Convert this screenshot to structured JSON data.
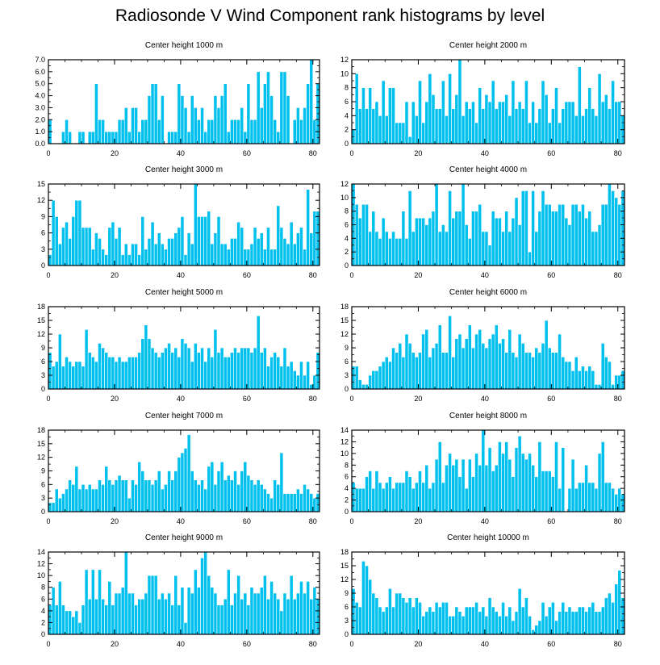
{
  "title": "Radiosonde V Wind Component rank histograms by level",
  "colors": {
    "bar": "#00c0ee",
    "bar_edge": "#ffffff",
    "axis": "#000000"
  },
  "chart_data": [
    {
      "type": "bar",
      "title": "Center height 1000 m",
      "xlabel": "",
      "ylabel": "",
      "xlim": [
        0,
        82
      ],
      "xticks": [
        0,
        20,
        40,
        60,
        80
      ],
      "ylim": [
        0,
        7
      ],
      "yticks": [
        "0.0",
        "1.0",
        "2.0",
        "3.0",
        "4.0",
        "5.0",
        "6.0",
        "7.0"
      ],
      "values": [
        2,
        0,
        0,
        0,
        1,
        2,
        1,
        0,
        0,
        1,
        1,
        0,
        1,
        1,
        5,
        2,
        2,
        1,
        1,
        1,
        1,
        2,
        2,
        3,
        1,
        3,
        3,
        1,
        2,
        2,
        4,
        5,
        5,
        2,
        4,
        0,
        1,
        1,
        1,
        5,
        4,
        3,
        1,
        4,
        3,
        2,
        3,
        1,
        2,
        2,
        4,
        3,
        4,
        5,
        1,
        2,
        2,
        2,
        3,
        1,
        5,
        2,
        2,
        6,
        3,
        5,
        6,
        4,
        2,
        1,
        6,
        6,
        4,
        0,
        2,
        3,
        2,
        3,
        5,
        7,
        2,
        5
      ]
    },
    {
      "type": "bar",
      "title": "Center height 2000 m",
      "xlabel": "",
      "ylabel": "",
      "xlim": [
        0,
        82
      ],
      "xticks": [
        0,
        20,
        40,
        60,
        80
      ],
      "ylim": [
        0,
        12
      ],
      "yticks": [
        "0",
        "2",
        "4",
        "6",
        "8",
        "10",
        "12"
      ],
      "values": [
        2,
        10,
        5,
        8,
        5,
        8,
        5,
        6,
        4,
        9,
        4,
        8,
        8,
        3,
        3,
        3,
        6,
        1,
        6,
        4,
        9,
        3,
        6,
        10,
        7,
        5,
        5,
        9,
        4,
        10,
        5,
        7,
        12,
        4,
        6,
        5,
        6,
        3,
        8,
        5,
        7,
        6,
        9,
        5,
        6,
        6,
        7,
        4,
        9,
        5,
        6,
        5,
        9,
        3,
        6,
        3,
        5,
        9,
        7,
        3,
        5,
        8,
        3,
        5,
        6,
        6,
        6,
        4,
        11,
        4,
        5,
        8,
        5,
        4,
        10,
        6,
        7,
        5,
        9,
        6,
        6,
        4
      ]
    },
    {
      "type": "bar",
      "title": "Center height 3000 m",
      "xlabel": "",
      "ylabel": "",
      "xlim": [
        0,
        82
      ],
      "xticks": [
        0,
        20,
        40,
        60,
        80
      ],
      "ylim": [
        0,
        15
      ],
      "yticks": [
        "0",
        "3",
        "6",
        "9",
        "12",
        "15"
      ],
      "values": [
        2,
        12,
        9,
        4,
        7,
        8,
        5,
        9,
        12,
        12,
        7,
        7,
        7,
        3,
        6,
        5,
        3,
        2,
        7,
        8,
        5,
        7,
        2,
        4,
        2,
        4,
        4,
        2,
        9,
        3,
        5,
        8,
        4,
        6,
        4,
        3,
        5,
        5,
        6,
        7,
        9,
        2,
        6,
        4,
        15,
        9,
        9,
        9,
        10,
        4,
        6,
        9,
        4,
        4,
        3,
        5,
        5,
        8,
        7,
        3,
        3,
        4,
        7,
        5,
        6,
        3,
        7,
        3,
        3,
        11,
        7,
        5,
        4,
        8,
        4,
        6,
        7,
        3,
        14,
        6,
        10,
        10
      ]
    },
    {
      "type": "bar",
      "title": "Center height 4000 m",
      "xlabel": "",
      "ylabel": "",
      "xlim": [
        0,
        82
      ],
      "xticks": [
        0,
        20,
        40,
        60,
        80
      ],
      "ylim": [
        0,
        12
      ],
      "yticks": [
        "0",
        "2",
        "4",
        "6",
        "8",
        "10",
        "12"
      ],
      "values": [
        12,
        9,
        7,
        9,
        9,
        5,
        8,
        5,
        4,
        7,
        5,
        4,
        5,
        4,
        4,
        8,
        4,
        11,
        5,
        7,
        7,
        7,
        6,
        7,
        8,
        12,
        5,
        6,
        5,
        11,
        7,
        8,
        8,
        12,
        6,
        4,
        8,
        8,
        9,
        5,
        5,
        3,
        8,
        7,
        7,
        5,
        8,
        5,
        7,
        10,
        6,
        11,
        11,
        2,
        11,
        5,
        8,
        11,
        9,
        9,
        8,
        8,
        9,
        9,
        7,
        6,
        9,
        9,
        8,
        9,
        7,
        8,
        5,
        5,
        6,
        9,
        9,
        12,
        11,
        10,
        9,
        11
      ]
    },
    {
      "type": "bar",
      "title": "Center height 5000 m",
      "xlabel": "",
      "ylabel": "",
      "xlim": [
        0,
        82
      ],
      "xticks": [
        0,
        20,
        40,
        60,
        80
      ],
      "ylim": [
        0,
        18
      ],
      "yticks": [
        "0",
        "3",
        "6",
        "9",
        "12",
        "15",
        "18"
      ],
      "values": [
        8,
        5,
        6,
        12,
        5,
        7,
        6,
        5,
        6,
        6,
        5,
        13,
        8,
        7,
        6,
        10,
        9,
        8,
        7,
        7,
        6,
        7,
        6,
        6,
        7,
        7,
        7,
        8,
        11,
        14,
        11,
        9,
        8,
        7,
        8,
        9,
        10,
        8,
        9,
        7,
        11,
        10,
        9,
        6,
        10,
        8,
        9,
        6,
        9,
        7,
        13,
        8,
        9,
        7,
        7,
        8,
        9,
        8,
        9,
        9,
        9,
        8,
        9,
        16,
        8,
        9,
        5,
        7,
        8,
        7,
        5,
        9,
        5,
        6,
        4,
        3,
        6,
        3,
        6,
        1,
        3,
        8
      ]
    },
    {
      "type": "bar",
      "title": "Center height 6000 m",
      "xlabel": "",
      "ylabel": "",
      "xlim": [
        0,
        82
      ],
      "xticks": [
        0,
        20,
        40,
        60,
        80
      ],
      "ylim": [
        0,
        18
      ],
      "yticks": [
        "0",
        "3",
        "6",
        "9",
        "12",
        "15",
        "18"
      ],
      "values": [
        5,
        5,
        2,
        1,
        1,
        3,
        4,
        4,
        5,
        6,
        7,
        6,
        9,
        8,
        10,
        7,
        12,
        10,
        8,
        7,
        8,
        12,
        13,
        7,
        9,
        10,
        14,
        8,
        8,
        16,
        7,
        11,
        12,
        9,
        11,
        14,
        9,
        12,
        13,
        10,
        9,
        11,
        12,
        14,
        10,
        11,
        8,
        13,
        8,
        7,
        12,
        10,
        8,
        8,
        7,
        9,
        8,
        10,
        15,
        9,
        8,
        8,
        12,
        7,
        6,
        6,
        4,
        7,
        4,
        5,
        4,
        5,
        4,
        1,
        1,
        10,
        7,
        6,
        1,
        3,
        3,
        4
      ]
    },
    {
      "type": "bar",
      "title": "Center height 7000 m",
      "xlabel": "",
      "ylabel": "",
      "xlim": [
        0,
        82
      ],
      "xticks": [
        0,
        20,
        40,
        60,
        80
      ],
      "ylim": [
        0,
        18
      ],
      "yticks": [
        "0",
        "3",
        "6",
        "9",
        "12",
        "15",
        "18"
      ],
      "values": [
        2,
        2,
        5,
        3,
        4,
        5,
        7,
        6,
        10,
        5,
        6,
        5,
        6,
        5,
        5,
        7,
        6,
        10,
        7,
        6,
        7,
        8,
        7,
        7,
        3,
        7,
        6,
        11,
        9,
        7,
        7,
        6,
        7,
        9,
        5,
        6,
        9,
        7,
        9,
        12,
        13,
        14,
        17,
        9,
        7,
        6,
        7,
        5,
        10,
        11,
        6,
        9,
        11,
        7,
        8,
        7,
        9,
        6,
        9,
        11,
        8,
        7,
        6,
        7,
        6,
        5,
        4,
        3,
        7,
        6,
        13,
        4,
        4,
        4,
        4,
        5,
        4,
        6,
        5,
        4,
        3,
        4
      ]
    },
    {
      "type": "bar",
      "title": "Center height 8000 m",
      "xlabel": "",
      "ylabel": "",
      "xlim": [
        0,
        82
      ],
      "xticks": [
        0,
        20,
        40,
        60,
        80
      ],
      "ylim": [
        0,
        14
      ],
      "yticks": [
        "0",
        "2",
        "4",
        "6",
        "8",
        "10",
        "12",
        "14"
      ],
      "values": [
        5,
        4,
        4,
        4,
        6,
        7,
        4,
        7,
        5,
        4,
        5,
        6,
        4,
        5,
        5,
        5,
        7,
        6,
        4,
        5,
        7,
        5,
        8,
        4,
        5,
        9,
        12,
        5,
        8,
        10,
        8,
        9,
        6,
        9,
        4,
        9,
        6,
        10,
        8,
        14,
        8,
        11,
        7,
        8,
        12,
        10,
        12,
        9,
        6,
        11,
        13,
        10,
        9,
        10,
        8,
        6,
        12,
        7,
        7,
        7,
        6,
        12,
        4,
        11,
        0,
        4,
        9,
        4,
        5,
        5,
        8,
        5,
        5,
        4,
        10,
        12,
        5,
        5,
        4,
        3,
        4,
        3
      ]
    },
    {
      "type": "bar",
      "title": "Center height 9000 m",
      "xlabel": "",
      "ylabel": "",
      "xlim": [
        0,
        82
      ],
      "xticks": [
        0,
        20,
        40,
        60,
        80
      ],
      "ylim": [
        0,
        14
      ],
      "yticks": [
        "0",
        "2",
        "4",
        "6",
        "8",
        "10",
        "12",
        "14"
      ],
      "values": [
        5,
        8,
        5,
        9,
        5,
        4,
        4,
        3,
        4,
        2,
        5,
        11,
        6,
        11,
        6,
        11,
        6,
        5,
        9,
        5,
        7,
        7,
        8,
        14,
        7,
        7,
        5,
        6,
        6,
        7,
        10,
        10,
        10,
        6,
        7,
        6,
        7,
        5,
        10,
        5,
        8,
        2,
        8,
        7,
        11,
        8,
        13,
        14,
        10,
        8,
        7,
        5,
        5,
        6,
        11,
        5,
        7,
        10,
        6,
        7,
        5,
        8,
        7,
        7,
        8,
        10,
        6,
        9,
        7,
        6,
        4,
        7,
        6,
        10,
        6,
        7,
        9,
        7,
        9,
        6,
        8,
        6
      ]
    },
    {
      "type": "bar",
      "title": "Center height 10000 m",
      "xlabel": "",
      "ylabel": "",
      "xlim": [
        0,
        82
      ],
      "xticks": [
        0,
        20,
        40,
        60,
        80
      ],
      "ylim": [
        0,
        18
      ],
      "yticks": [
        "0",
        "3",
        "6",
        "9",
        "12",
        "15",
        "18"
      ],
      "values": [
        10,
        7,
        6,
        16,
        15,
        12,
        9,
        8,
        6,
        5,
        6,
        10,
        6,
        9,
        9,
        8,
        7,
        8,
        6,
        8,
        7,
        4,
        5,
        6,
        5,
        7,
        6,
        7,
        7,
        4,
        4,
        6,
        5,
        4,
        6,
        6,
        6,
        7,
        5,
        6,
        4,
        8,
        6,
        5,
        4,
        7,
        4,
        6,
        3,
        5,
        10,
        6,
        8,
        4,
        1,
        2,
        3,
        7,
        4,
        6,
        7,
        3,
        5,
        7,
        5,
        6,
        5,
        5,
        6,
        6,
        5,
        6,
        7,
        5,
        5,
        6,
        8,
        9,
        7,
        11,
        14,
        8
      ]
    }
  ]
}
